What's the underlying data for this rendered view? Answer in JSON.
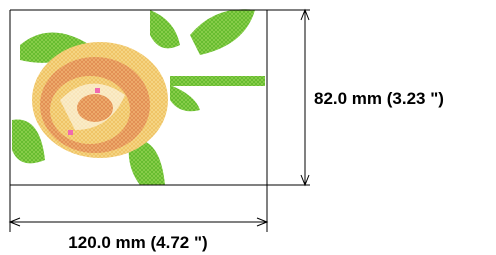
{
  "dimensions": {
    "width": "120.0 mm (4.72 \")",
    "height": "82.0 mm (3.23 \")"
  }
}
